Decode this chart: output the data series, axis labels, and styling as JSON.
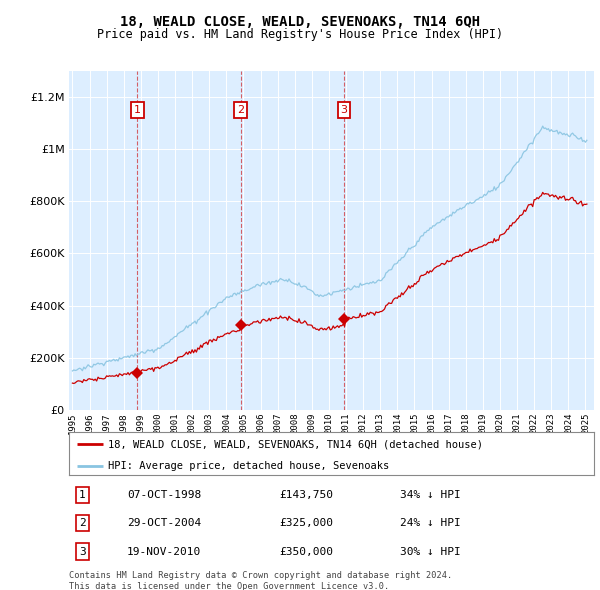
{
  "title": "18, WEALD CLOSE, WEALD, SEVENOAKS, TN14 6QH",
  "subtitle": "Price paid vs. HM Land Registry's House Price Index (HPI)",
  "purchases": [
    {
      "date": 1998.79,
      "price": 143750,
      "label": "1"
    },
    {
      "date": 2004.83,
      "price": 325000,
      "label": "2"
    },
    {
      "date": 2010.88,
      "price": 350000,
      "label": "3"
    }
  ],
  "purchase_info": [
    {
      "num": "1",
      "date": "07-OCT-1998",
      "price": "£143,750",
      "pct": "34% ↓ HPI"
    },
    {
      "num": "2",
      "date": "29-OCT-2004",
      "price": "£325,000",
      "pct": "24% ↓ HPI"
    },
    {
      "num": "3",
      "date": "19-NOV-2010",
      "price": "£350,000",
      "pct": "30% ↓ HPI"
    }
  ],
  "hpi_line_color": "#89c4e1",
  "price_line_color": "#cc0000",
  "marker_color": "#cc0000",
  "marker_box_color": "#cc0000",
  "vline_color": "#cc0000",
  "legend_label_price": "18, WEALD CLOSE, WEALD, SEVENOAKS, TN14 6QH (detached house)",
  "legend_label_hpi": "HPI: Average price, detached house, Sevenoaks",
  "footer": "Contains HM Land Registry data © Crown copyright and database right 2024.\nThis data is licensed under the Open Government Licence v3.0.",
  "ylim": [
    0,
    1300000
  ],
  "xlim": [
    1994.8,
    2025.5
  ],
  "background_color": "#ffffff",
  "plot_bg_color": "#ddeeff"
}
